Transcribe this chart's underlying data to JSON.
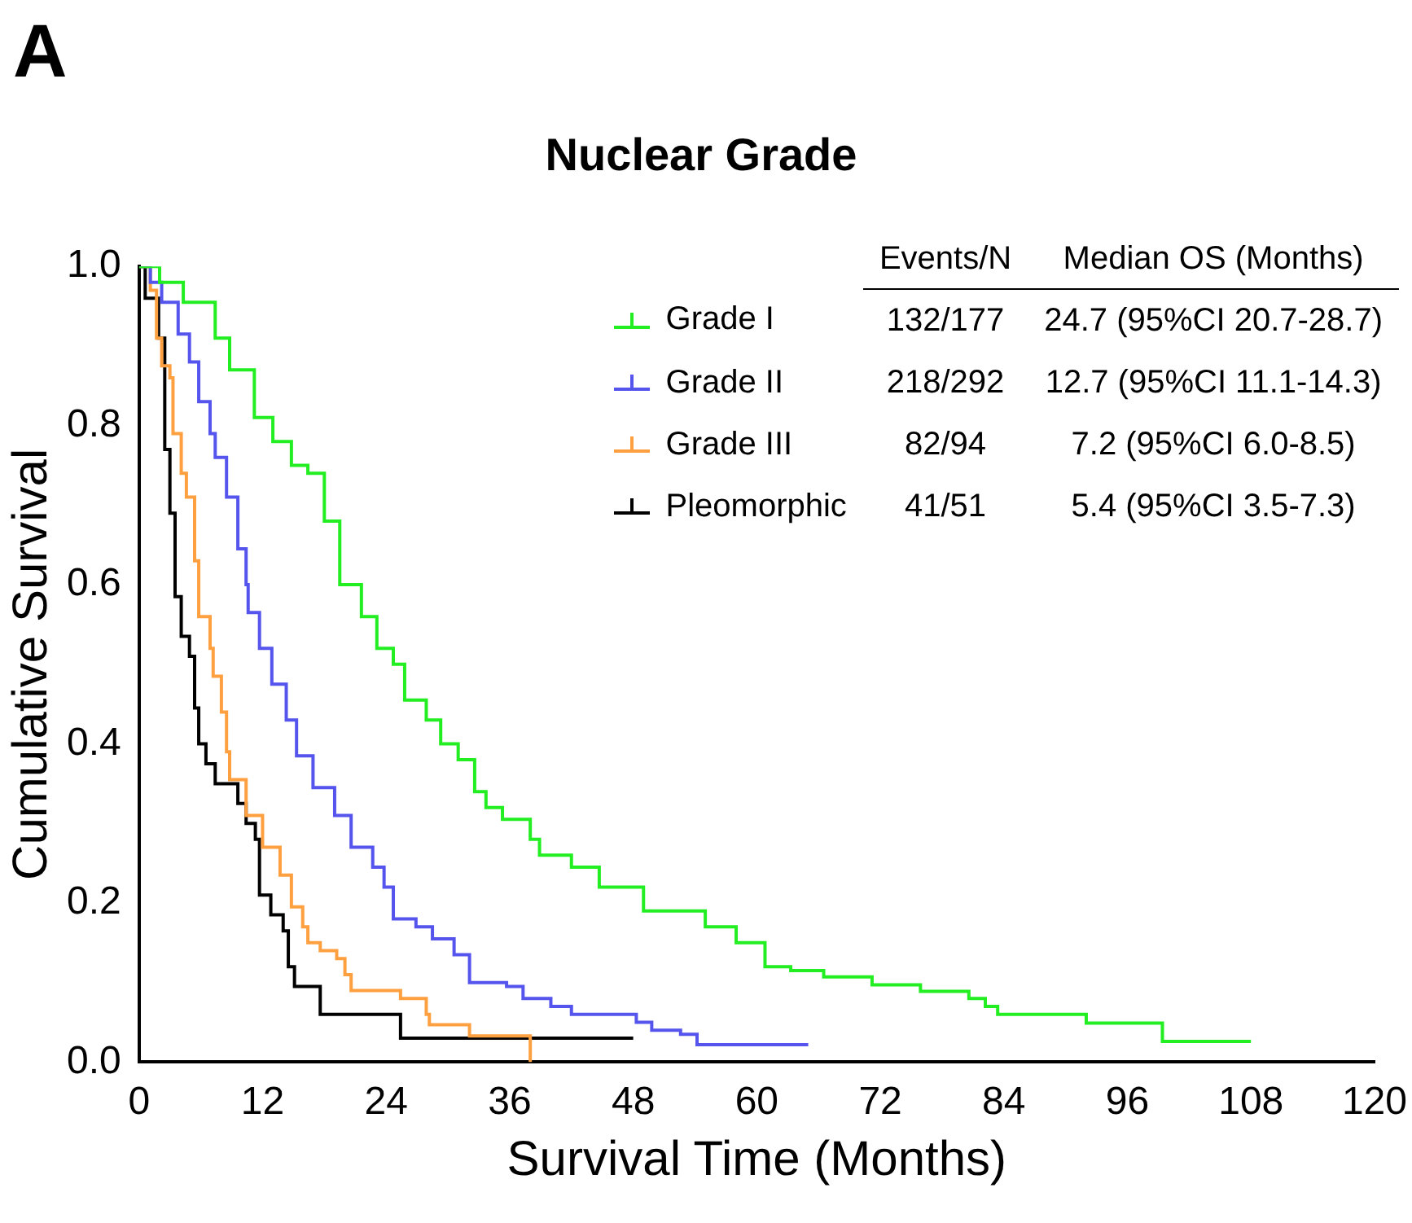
{
  "chart_data": {
    "type": "step",
    "title": "Nuclear Grade",
    "xlabel": "Survival Time (Months)",
    "ylabel": "Cumulative Survival",
    "annotations": [
      "A",
      "Events/N",
      "Median OS (Months)",
      "132/177",
      "24.7 (95%CI 20.7-28.7)",
      "218/292",
      "12.7 (95%CI 11.1-14.3)",
      "82/94",
      "7.2 (95%CI 6.0-8.5)",
      "41/51",
      "5.4 (95%CI 3.5-7.3)"
    ],
    "xlim": [
      0,
      120
    ],
    "xticks": [
      0,
      12,
      24,
      36,
      48,
      60,
      72,
      84,
      96,
      108,
      120
    ],
    "ylim": [
      0,
      1
    ],
    "yticks": [
      {
        "value": 0,
        "label": "0.0"
      },
      {
        "value": 0.2,
        "label": "0.2"
      },
      {
        "value": 0.4,
        "label": "0.4"
      },
      {
        "value": 0.6,
        "label": "0.6"
      },
      {
        "value": 0.8,
        "label": "0.8"
      },
      {
        "value": 1,
        "label": "1.0"
      }
    ],
    "grid": false,
    "legend": "top right",
    "line_style": "solid",
    "series": [
      {
        "name": "Grade I",
        "color": "#22ee22",
        "x": [
          0,
          2,
          4.3,
          7.4,
          8.8,
          11.2,
          13,
          14.8,
          16.4,
          18,
          19.5,
          21.6,
          23.1,
          24.7,
          25.8,
          27.9,
          29.3,
          31,
          32.6,
          33.7,
          35.3,
          38,
          38.9,
          42,
          44.7,
          49,
          55,
          58,
          60.8,
          63.3,
          66.5,
          71.2,
          75.9,
          80.6,
          82.2,
          83.4,
          92,
          99.4,
          108
        ],
        "values": [
          1,
          0.98,
          0.955,
          0.91,
          0.87,
          0.81,
          0.78,
          0.75,
          0.74,
          0.68,
          0.6,
          0.56,
          0.52,
          0.5,
          0.455,
          0.43,
          0.4,
          0.38,
          0.34,
          0.32,
          0.305,
          0.28,
          0.26,
          0.245,
          0.22,
          0.19,
          0.17,
          0.15,
          0.12,
          0.115,
          0.107,
          0.097,
          0.089,
          0.08,
          0.07,
          0.06,
          0.049,
          0.026,
          0.026
        ]
      },
      {
        "name": "Grade II",
        "color": "#5555ee",
        "x": [
          0,
          1.1,
          2.2,
          3.8,
          4.9,
          5.8,
          6.9,
          7.4,
          8.5,
          9.6,
          10.4,
          10.6,
          11.7,
          12.9,
          14.3,
          15.3,
          16.9,
          19,
          20.6,
          22.7,
          23.8,
          24.7,
          26.9,
          28.5,
          30.6,
          32.1,
          35.7,
          37.3,
          40,
          42,
          48.3,
          49.8,
          52.6,
          54.2,
          65
        ],
        "values": [
          1,
          0.98,
          0.955,
          0.915,
          0.88,
          0.83,
          0.79,
          0.76,
          0.71,
          0.645,
          0.6,
          0.565,
          0.52,
          0.475,
          0.43,
          0.385,
          0.345,
          0.31,
          0.27,
          0.245,
          0.22,
          0.18,
          0.17,
          0.155,
          0.135,
          0.1,
          0.095,
          0.08,
          0.07,
          0.06,
          0.05,
          0.04,
          0.035,
          0.022,
          0.022
        ]
      },
      {
        "name": "Grade III",
        "color": "#ffa040",
        "x": [
          0,
          1.1,
          1.7,
          2.2,
          3,
          3.3,
          4.1,
          4.6,
          5.4,
          5.8,
          6.9,
          7.2,
          8,
          8.5,
          8.8,
          10.4,
          12,
          13.7,
          14.8,
          15.9,
          16.4,
          17.6,
          19.2,
          20,
          20.6,
          25.4,
          27.9,
          28.2,
          32.1,
          38,
          38
        ],
        "values": [
          1,
          0.97,
          0.91,
          0.875,
          0.86,
          0.79,
          0.74,
          0.71,
          0.63,
          0.56,
          0.52,
          0.485,
          0.44,
          0.39,
          0.355,
          0.31,
          0.27,
          0.235,
          0.195,
          0.17,
          0.15,
          0.14,
          0.13,
          0.11,
          0.09,
          0.08,
          0.06,
          0.047,
          0.033,
          0.033,
          0
        ]
      },
      {
        "name": "Pleomorphic",
        "color": "#000000",
        "x": [
          0,
          0.6,
          1.9,
          2.5,
          3,
          3.5,
          4.1,
          4.9,
          5.4,
          5.8,
          6.5,
          7.4,
          9.6,
          10.4,
          11.3,
          11.7,
          12.8,
          14,
          14.5,
          15.1,
          17.6,
          25.4,
          48
        ],
        "values": [
          1,
          0.96,
          0.91,
          0.77,
          0.69,
          0.585,
          0.535,
          0.51,
          0.445,
          0.4,
          0.375,
          0.35,
          0.325,
          0.3,
          0.28,
          0.21,
          0.185,
          0.165,
          0.12,
          0.095,
          0.06,
          0.03,
          0.03
        ]
      }
    ]
  }
}
